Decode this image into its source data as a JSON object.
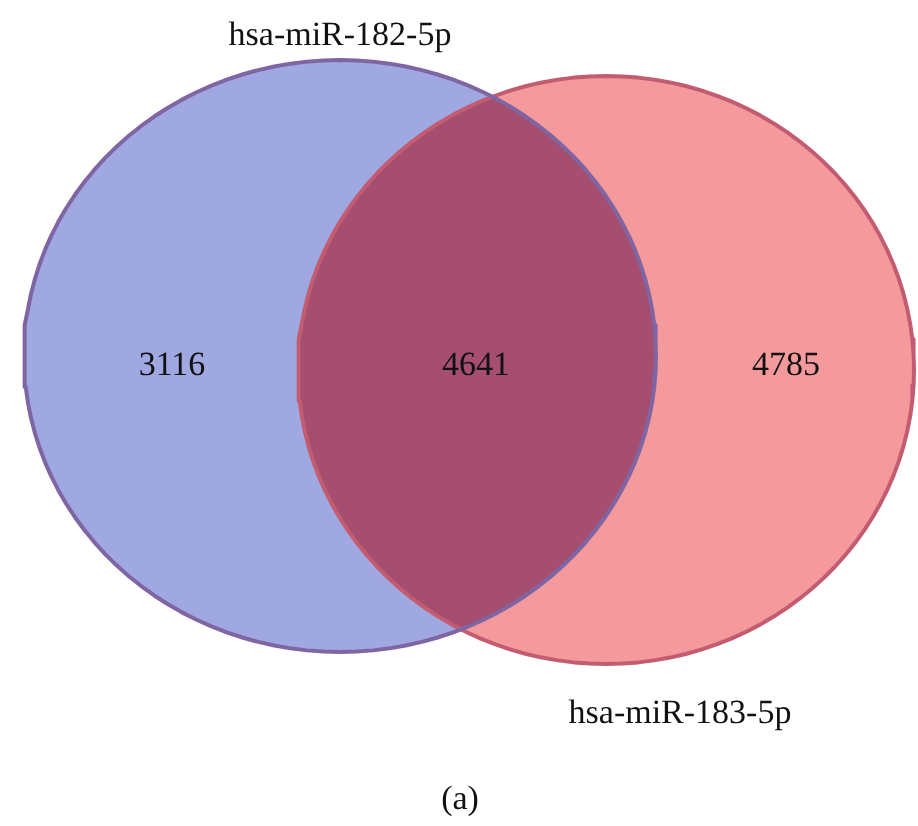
{
  "chart_data": {
    "type": "other",
    "values": [
      3116,
      4641,
      4785
    ],
    "colors": [
      "#a0a8e2",
      "#a64e70",
      "#f49a9c"
    ],
    "data_labels": true,
    "annotations": [
      "hsa-miR-182-5p",
      "hsa-miR-183-5p",
      "(a)"
    ]
  }
}
